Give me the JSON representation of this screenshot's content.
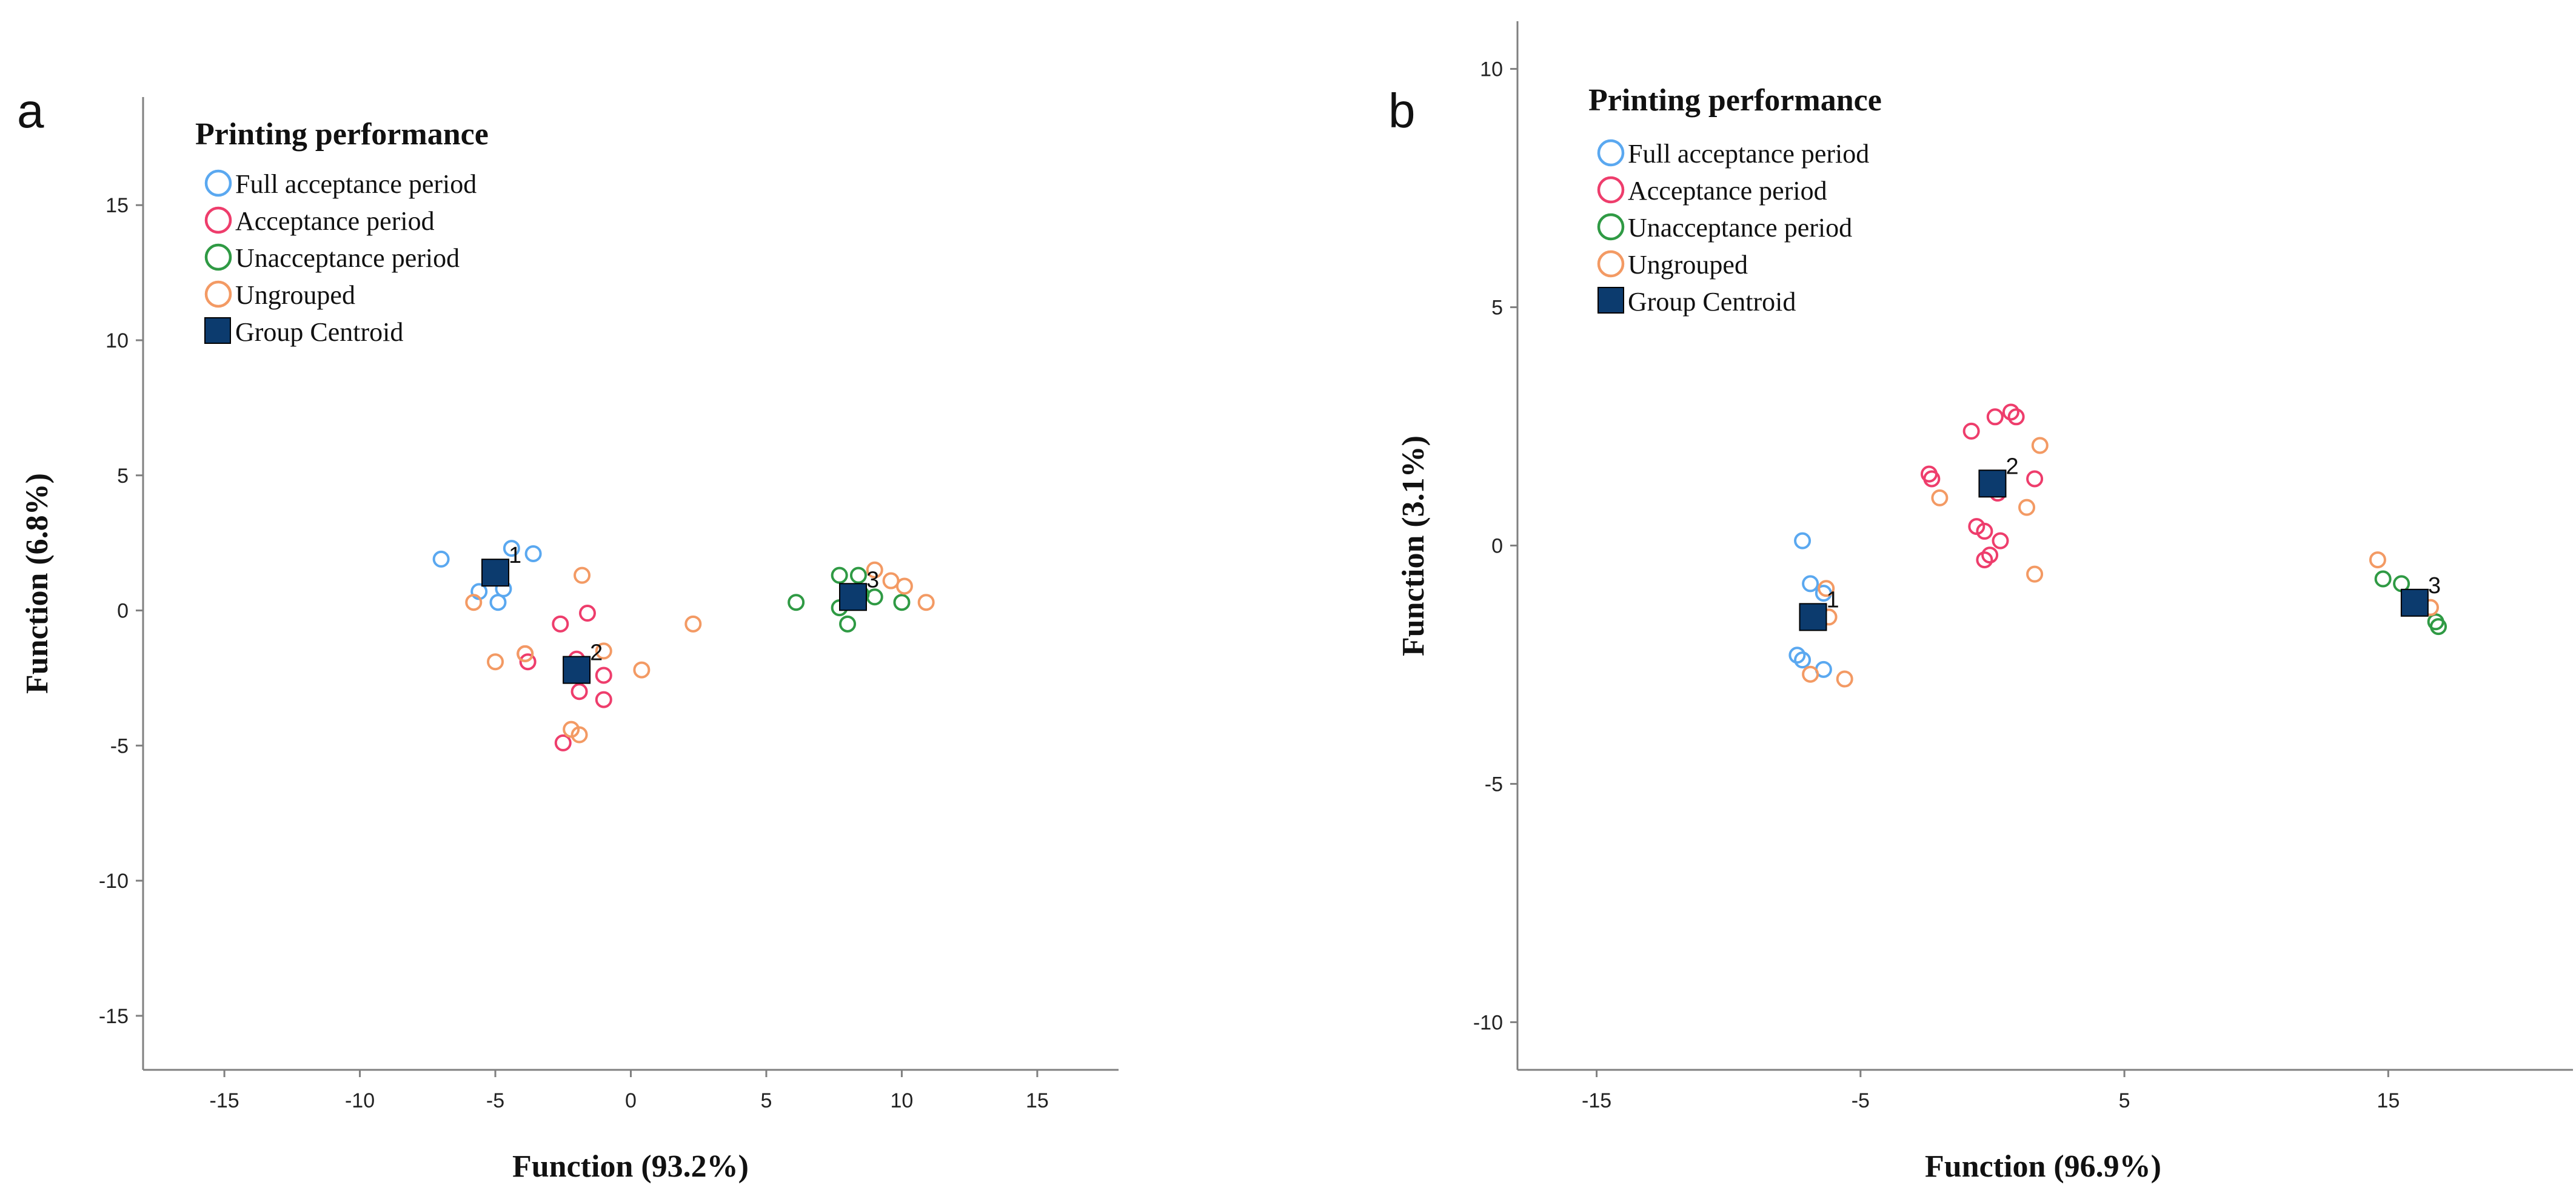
{
  "colors": {
    "full": "#5aa8f0",
    "acceptance": "#ee3d6c",
    "unacceptance": "#2f9a44",
    "ungrouped": "#f39a64",
    "centroid": "#0c3b6e",
    "axis": "#808080"
  },
  "legend": {
    "title": "Printing performance",
    "items": [
      {
        "key": "full",
        "label": "Full acceptance period",
        "marker": "circle"
      },
      {
        "key": "acceptance",
        "label": "Acceptance period",
        "marker": "circle"
      },
      {
        "key": "unacceptance",
        "label": "Unacceptance period",
        "marker": "circle"
      },
      {
        "key": "ungrouped",
        "label": "Ungrouped",
        "marker": "circle"
      },
      {
        "key": "centroid",
        "label": "Group Centroid",
        "marker": "square"
      }
    ]
  },
  "chart_data": [
    {
      "panel": "a",
      "type": "scatter",
      "xlabel": "Function (93.2%)",
      "ylabel": "Function (6.8%)",
      "xlim": [
        -18,
        18
      ],
      "ylim": [
        -17,
        19
      ],
      "xticks": [
        -15,
        -10,
        -5,
        0,
        5,
        10,
        15
      ],
      "yticks": [
        15,
        10,
        5,
        0,
        -5,
        -10,
        -15
      ],
      "series": [
        {
          "name": "Full acceptance period",
          "key": "full",
          "points": [
            [
              -7.0,
              1.9
            ],
            [
              -4.4,
              2.3
            ],
            [
              -3.6,
              2.1
            ],
            [
              -4.7,
              0.8
            ],
            [
              -5.6,
              0.7
            ],
            [
              -4.9,
              0.3
            ]
          ]
        },
        {
          "name": "Acceptance period",
          "key": "acceptance",
          "points": [
            [
              -2.6,
              -0.5
            ],
            [
              -1.6,
              -0.1
            ],
            [
              -3.9,
              -1.6
            ],
            [
              -3.8,
              -1.9
            ],
            [
              -2.0,
              -1.8
            ],
            [
              -1.0,
              -2.4
            ],
            [
              -1.9,
              -3.0
            ],
            [
              -1.0,
              -3.3
            ],
            [
              -2.5,
              -4.9
            ]
          ]
        },
        {
          "name": "Unacceptance period",
          "key": "unacceptance",
          "points": [
            [
              6.1,
              0.3
            ],
            [
              7.7,
              1.3
            ],
            [
              8.4,
              1.3
            ],
            [
              8.5,
              0.6
            ],
            [
              9.0,
              0.5
            ],
            [
              10.0,
              0.3
            ],
            [
              7.7,
              0.1
            ],
            [
              8.0,
              -0.5
            ]
          ]
        },
        {
          "name": "Ungrouped",
          "key": "ungrouped",
          "points": [
            [
              -1.8,
              1.3
            ],
            [
              -5.8,
              0.3
            ],
            [
              -3.9,
              -1.6
            ],
            [
              -5.0,
              -1.9
            ],
            [
              -1.0,
              -1.5
            ],
            [
              0.4,
              -2.2
            ],
            [
              2.3,
              -0.5
            ],
            [
              -2.2,
              -4.4
            ],
            [
              -1.9,
              -4.6
            ],
            [
              9.0,
              1.5
            ],
            [
              9.6,
              1.1
            ],
            [
              10.1,
              0.9
            ],
            [
              10.9,
              0.3
            ]
          ]
        }
      ],
      "centroids": [
        {
          "label": "1",
          "x": -5.0,
          "y": 1.4
        },
        {
          "label": "2",
          "x": -2.0,
          "y": -2.2
        },
        {
          "label": "3",
          "x": 8.2,
          "y": 0.5
        }
      ]
    },
    {
      "panel": "b",
      "type": "scatter",
      "xlabel": "Function (96.9%)",
      "ylabel": "Function (3.1%)",
      "xlim": [
        -18,
        22
      ],
      "ylim": [
        -11,
        11
      ],
      "xticks": [
        -15,
        -5,
        5,
        15
      ],
      "yticks": [
        10,
        5,
        0,
        -5,
        -10
      ],
      "series": [
        {
          "name": "Full acceptance period",
          "key": "full",
          "points": [
            [
              -7.2,
              0.1
            ],
            [
              -6.9,
              -0.8
            ],
            [
              -6.4,
              -1.0
            ],
            [
              -7.4,
              -2.3
            ],
            [
              -7.2,
              -2.4
            ],
            [
              -6.4,
              -2.6
            ]
          ]
        },
        {
          "name": "Acceptance period",
          "key": "acceptance",
          "points": [
            [
              -2.4,
              1.5
            ],
            [
              -2.3,
              1.4
            ],
            [
              -0.8,
              2.4
            ],
            [
              0.1,
              2.7
            ],
            [
              0.7,
              2.8
            ],
            [
              0.9,
              2.7
            ],
            [
              0.2,
              1.1
            ],
            [
              1.6,
              1.4
            ],
            [
              -0.6,
              0.4
            ],
            [
              -0.3,
              0.3
            ],
            [
              0.3,
              0.1
            ],
            [
              -0.1,
              -0.2
            ],
            [
              -0.3,
              -0.3
            ]
          ]
        },
        {
          "name": "Unacceptance period",
          "key": "unacceptance",
          "points": [
            [
              14.8,
              -0.7
            ],
            [
              15.5,
              -0.8
            ],
            [
              16.8,
              -1.6
            ],
            [
              16.9,
              -1.7
            ]
          ]
        },
        {
          "name": "Ungrouped",
          "key": "ungrouped",
          "points": [
            [
              -2.0,
              1.0
            ],
            [
              1.3,
              0.8
            ],
            [
              1.8,
              2.1
            ],
            [
              1.6,
              -0.6
            ],
            [
              -6.3,
              -0.9
            ],
            [
              -6.2,
              -1.5
            ],
            [
              -6.9,
              -2.7
            ],
            [
              -5.6,
              -2.8
            ],
            [
              14.6,
              -0.3
            ],
            [
              16.6,
              -1.3
            ]
          ]
        }
      ],
      "centroids": [
        {
          "label": "1",
          "x": -6.8,
          "y": -1.5
        },
        {
          "label": "2",
          "x": 0.0,
          "y": 1.3
        },
        {
          "label": "3",
          "x": 16.0,
          "y": -1.2
        }
      ]
    }
  ]
}
